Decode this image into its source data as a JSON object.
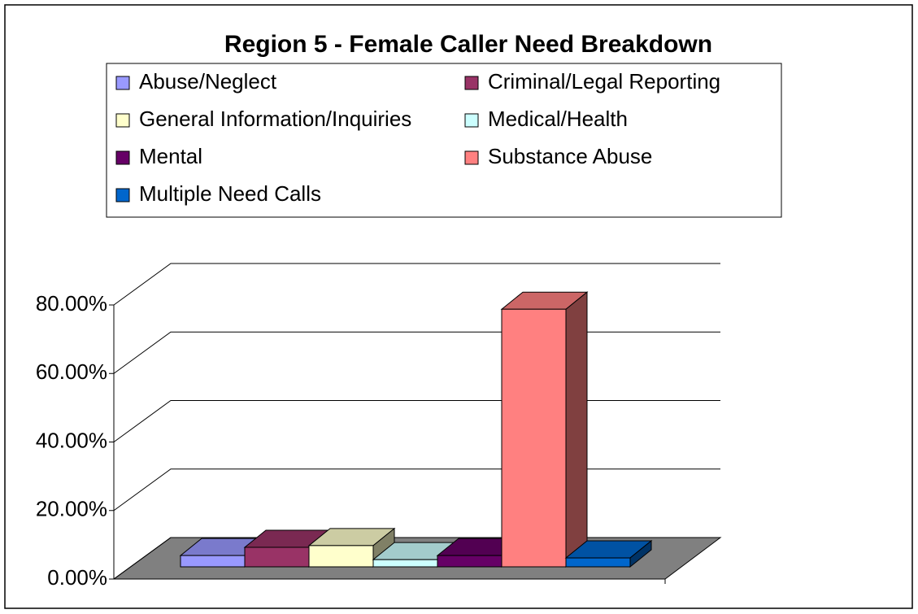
{
  "chart_data": {
    "type": "bar3d",
    "title": "Region 5 - Female Caller Need Breakdown",
    "series": [
      {
        "name": "Abuse/Neglect",
        "color": "#9999ff",
        "values": [
          3.3
        ]
      },
      {
        "name": "Criminal/Legal Reporting",
        "color": "#993366",
        "values": [
          5.7
        ]
      },
      {
        "name": "General Information/Inquiries",
        "color": "#ffffcc",
        "values": [
          6.2
        ]
      },
      {
        "name": "Medical/Health",
        "color": "#ccffff",
        "values": [
          2.1
        ]
      },
      {
        "name": "Mental",
        "color": "#660066",
        "values": [
          3.3
        ]
      },
      {
        "name": "Substance Abuse",
        "color": "#ff8080",
        "values": [
          75.2
        ]
      },
      {
        "name": "Multiple Need Calls",
        "color": "#0066cc",
        "values": [
          2.6
        ]
      }
    ],
    "ylim": [
      0,
      80
    ],
    "yticks": [
      {
        "value": 0,
        "label": "0.00%"
      },
      {
        "value": 20,
        "label": "20.00%"
      },
      {
        "value": 40,
        "label": "40.00%"
      },
      {
        "value": 60,
        "label": "60.00%"
      },
      {
        "value": 80,
        "label": "80.00%"
      }
    ],
    "grid": true,
    "legend": "top"
  }
}
